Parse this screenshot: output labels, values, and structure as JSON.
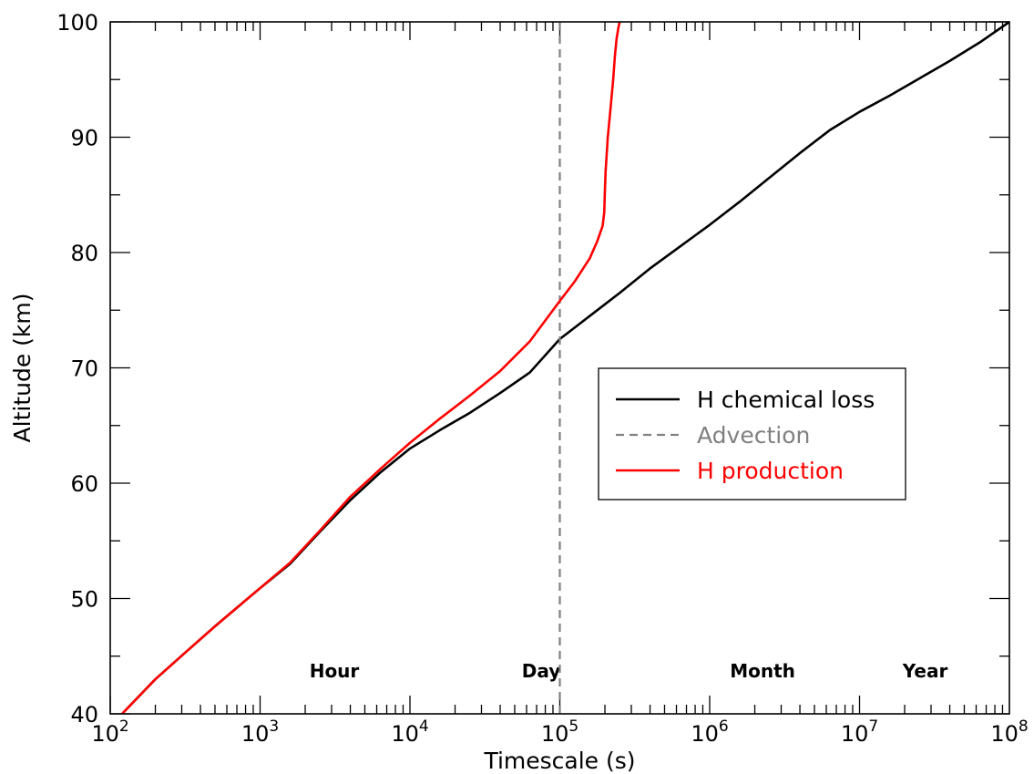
{
  "chart_data": {
    "type": "line",
    "xlabel": "Timescale (s)",
    "ylabel": "Altitude (km)",
    "xscale": "log",
    "xlim": [
      100,
      100000000
    ],
    "ylim": [
      40,
      100
    ],
    "grid": false,
    "legend_position": "center-right",
    "x_tick_labels": [
      {
        "base": "10",
        "exp": "2",
        "value": 100
      },
      {
        "base": "10",
        "exp": "3",
        "value": 1000
      },
      {
        "base": "10",
        "exp": "4",
        "value": 10000
      },
      {
        "base": "10",
        "exp": "5",
        "value": 100000
      },
      {
        "base": "10",
        "exp": "6",
        "value": 1000000
      },
      {
        "base": "10",
        "exp": "7",
        "value": 10000000
      },
      {
        "base": "10",
        "exp": "8",
        "value": 100000000
      }
    ],
    "y_ticks": [
      40,
      50,
      60,
      70,
      80,
      90,
      100
    ],
    "time_references": [
      {
        "label": "Hour",
        "value": 3600
      },
      {
        "label": "Day",
        "value": 86400
      },
      {
        "label": "Month",
        "value": 2592000
      },
      {
        "label": "Year",
        "value": 31536000
      }
    ],
    "series": [
      {
        "name": "H chemical loss",
        "color": "#000000",
        "style": "solid",
        "points": [
          [
            120,
            40
          ],
          [
            200,
            43
          ],
          [
            316,
            45.3
          ],
          [
            501,
            47.6
          ],
          [
            794,
            49.8
          ],
          [
            1000,
            50.9
          ],
          [
            1585,
            53
          ],
          [
            2512,
            55.8
          ],
          [
            3981,
            58.5
          ],
          [
            6310,
            60.9
          ],
          [
            10000,
            63
          ],
          [
            15850,
            64.6
          ],
          [
            25120,
            66.1
          ],
          [
            39810,
            67.8
          ],
          [
            63100,
            69.6
          ],
          [
            100000,
            72.5
          ],
          [
            158500,
            74.5
          ],
          [
            251200,
            76.5
          ],
          [
            398100,
            78.6
          ],
          [
            631000,
            80.5
          ],
          [
            1000000,
            82.4
          ],
          [
            1585000,
            84.4
          ],
          [
            2512000,
            86.5
          ],
          [
            3981000,
            88.6
          ],
          [
            6310000,
            90.6
          ],
          [
            10000000,
            92.2
          ],
          [
            15850000,
            93.6
          ],
          [
            25120000,
            95.1
          ],
          [
            39810000,
            96.6
          ],
          [
            63100000,
            98.2
          ],
          [
            100000000,
            100
          ]
        ]
      },
      {
        "name": "Advection",
        "color": "#808080",
        "style": "dashed",
        "points": [
          [
            100000,
            40
          ],
          [
            100000,
            100
          ]
        ]
      },
      {
        "name": "H production",
        "color": "#ff0000",
        "style": "solid",
        "points": [
          [
            120,
            40
          ],
          [
            200,
            43
          ],
          [
            316,
            45.3
          ],
          [
            501,
            47.6
          ],
          [
            794,
            49.8
          ],
          [
            1000,
            50.9
          ],
          [
            1585,
            53.1
          ],
          [
            2512,
            55.9
          ],
          [
            3981,
            58.8
          ],
          [
            6310,
            61.2
          ],
          [
            10000,
            63.5
          ],
          [
            15850,
            65.6
          ],
          [
            25120,
            67.6
          ],
          [
            39810,
            69.7
          ],
          [
            63100,
            72.3
          ],
          [
            100000,
            75.8
          ],
          [
            125900,
            77.5
          ],
          [
            158500,
            79.5
          ],
          [
            178000,
            81
          ],
          [
            193000,
            82.3
          ],
          [
            198000,
            83.5
          ],
          [
            199500,
            85
          ],
          [
            202000,
            87
          ],
          [
            209000,
            90
          ],
          [
            218000,
            92.5
          ],
          [
            227000,
            95
          ],
          [
            233000,
            97
          ],
          [
            239000,
            98.5
          ],
          [
            246000,
            99.5
          ],
          [
            251000,
            100
          ]
        ]
      }
    ]
  }
}
